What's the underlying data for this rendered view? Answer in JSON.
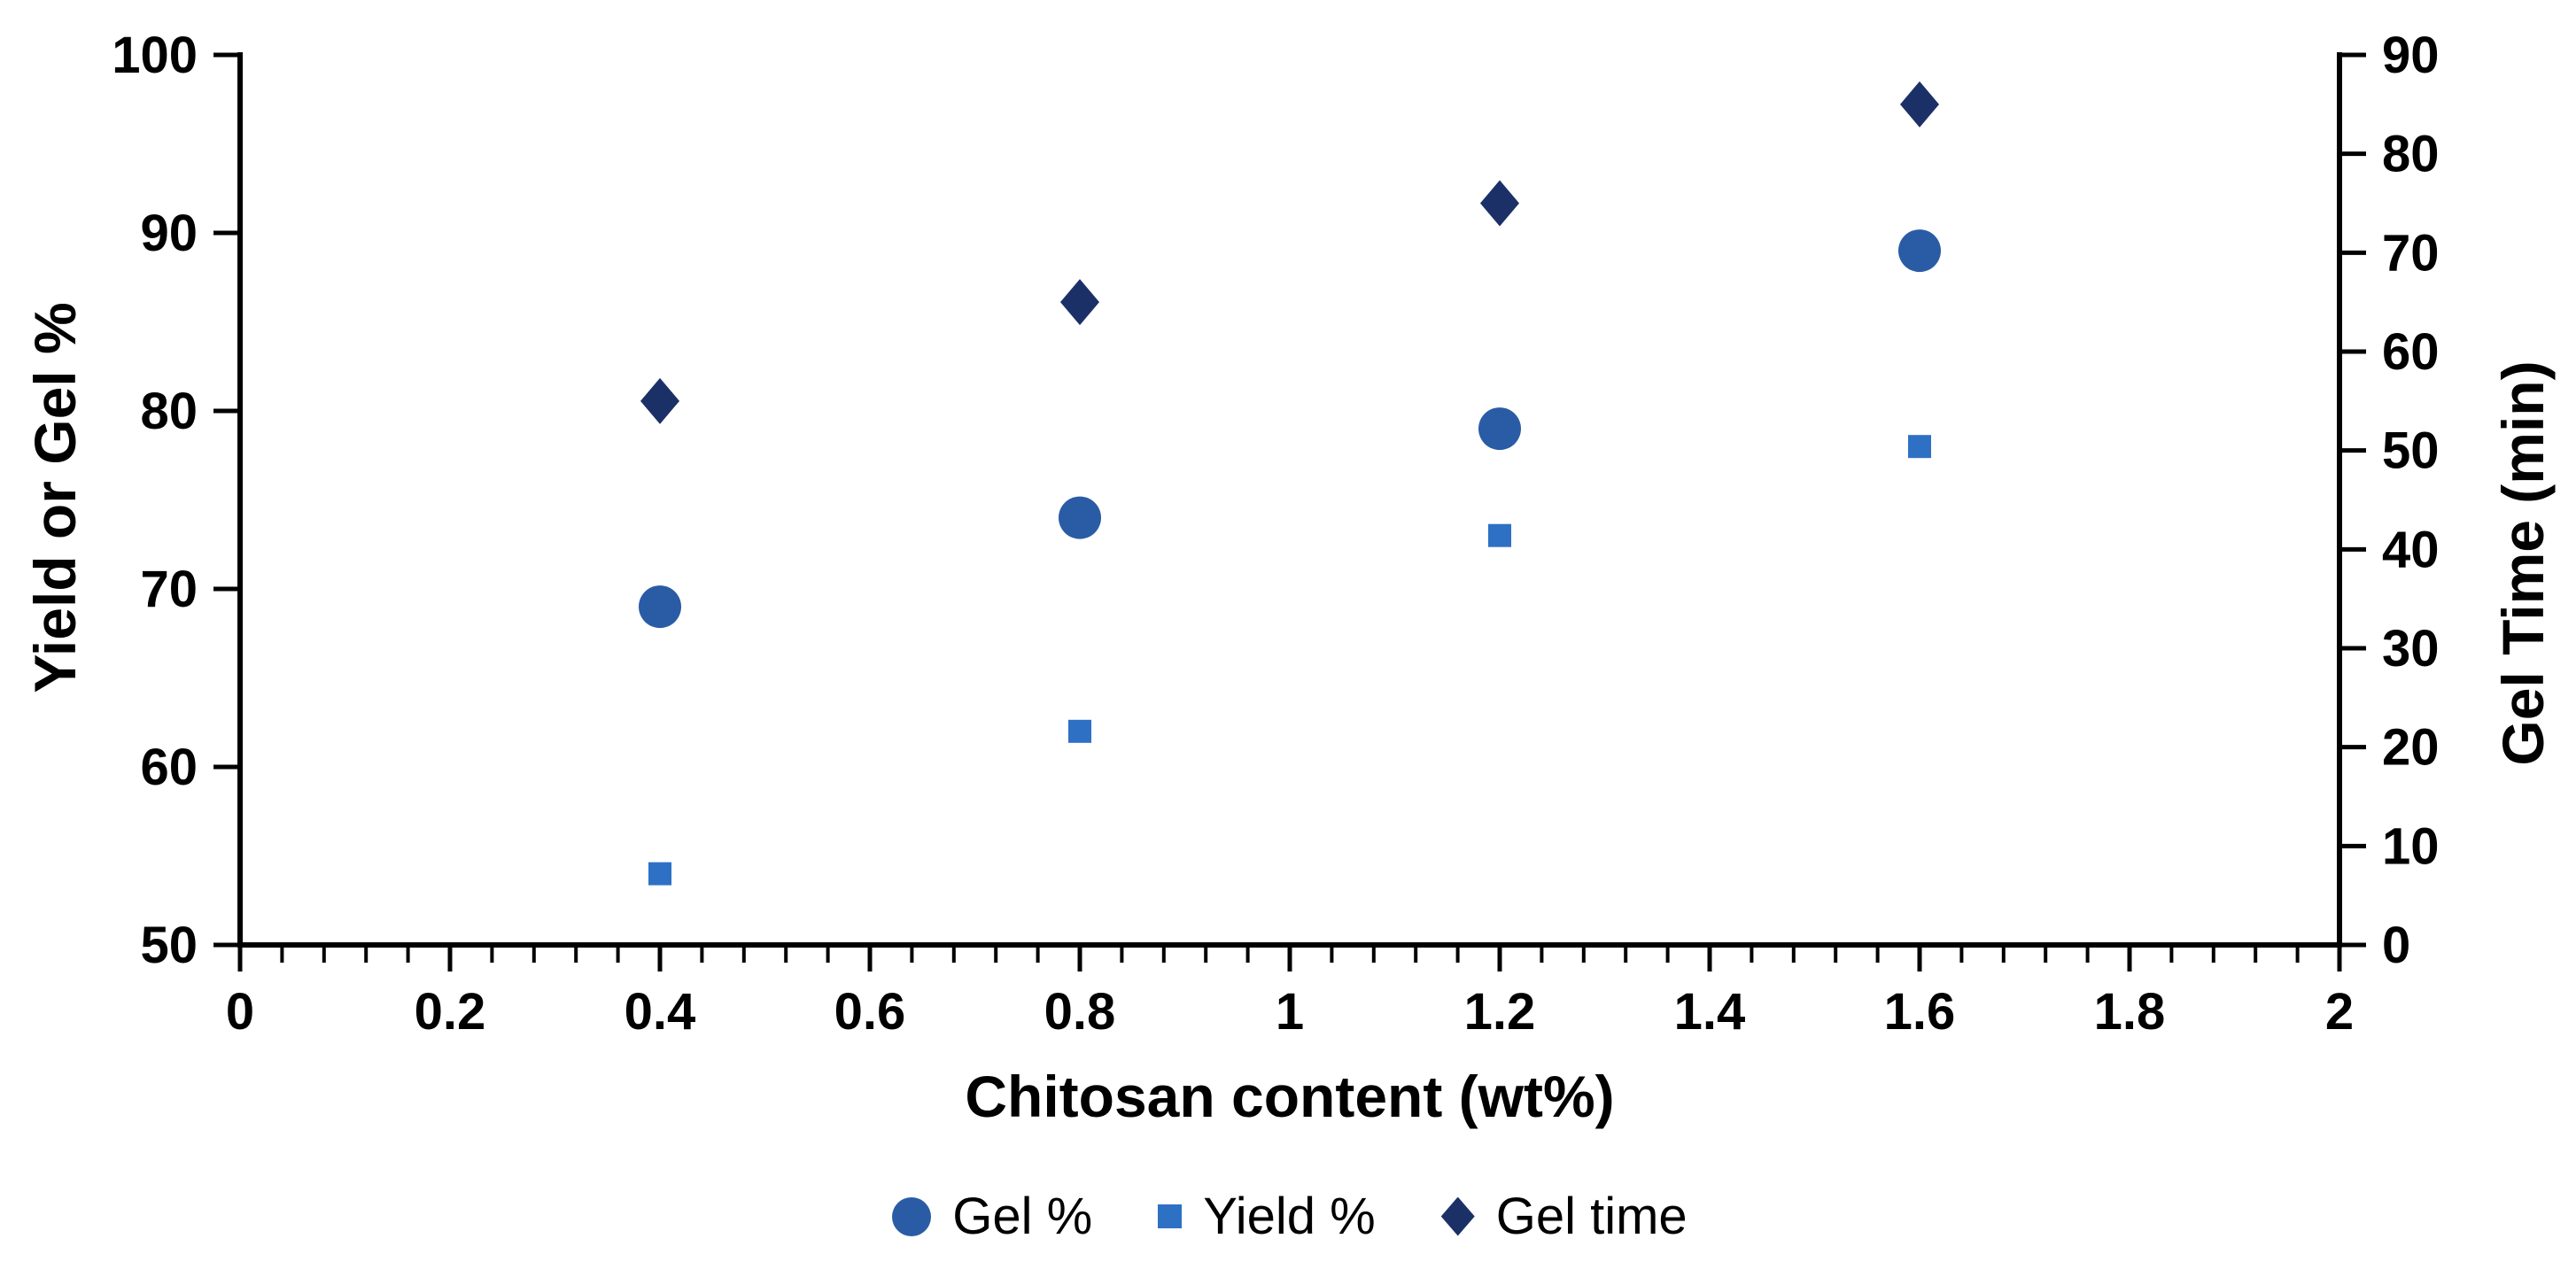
{
  "chart_data": {
    "type": "scatter",
    "title": "",
    "grid": false,
    "background": "#ffffff",
    "axis_color": "#000000",
    "x_axis": {
      "label": "Chitosan content (wt%)",
      "min": 0,
      "max": 2,
      "major_tick_step": 0.2,
      "minor_tick_step": 0.04,
      "tick_labels": [
        "0",
        "0.2",
        "0.4",
        "0.6",
        "0.8",
        "1",
        "1.2",
        "1.4",
        "1.6",
        "1.8",
        "2"
      ],
      "tick_values": [
        0,
        0.2,
        0.4,
        0.6,
        0.8,
        1,
        1.2,
        1.4,
        1.6,
        1.8,
        2
      ]
    },
    "y_left_axis": {
      "label": "Yield or Gel %",
      "min": 50,
      "max": 100,
      "tick_step": 10,
      "tick_labels": [
        "50",
        "60",
        "70",
        "80",
        "90",
        "100"
      ],
      "tick_values": [
        50,
        60,
        70,
        80,
        90,
        100
      ]
    },
    "y_right_axis": {
      "label": "Gel Time (min)",
      "min": 0,
      "max": 90,
      "tick_step": 10,
      "tick_labels": [
        "0",
        "10",
        "20",
        "30",
        "40",
        "50",
        "60",
        "70",
        "80",
        "90"
      ],
      "tick_values": [
        0,
        10,
        20,
        30,
        40,
        50,
        60,
        70,
        80,
        90
      ]
    },
    "series": [
      {
        "name": "Gel %",
        "marker": "circle",
        "axis": "left",
        "color": "#2A5CA5",
        "x": [
          0.4,
          0.8,
          1.2,
          1.6
        ],
        "y": [
          69,
          74,
          79,
          89
        ]
      },
      {
        "name": "Yield %",
        "marker": "square",
        "axis": "left",
        "color": "#2E70C4",
        "x": [
          0.4,
          0.8,
          1.2,
          1.6
        ],
        "y": [
          54,
          62,
          73,
          78
        ]
      },
      {
        "name": "Gel time",
        "marker": "diamond",
        "axis": "right",
        "color": "#1C3068",
        "x": [
          0.4,
          0.8,
          1.2,
          1.6
        ],
        "y": [
          55,
          65,
          75,
          85
        ]
      }
    ],
    "legend": {
      "position": "bottom",
      "items": [
        "Gel %",
        "Yield %",
        "Gel time"
      ]
    }
  }
}
